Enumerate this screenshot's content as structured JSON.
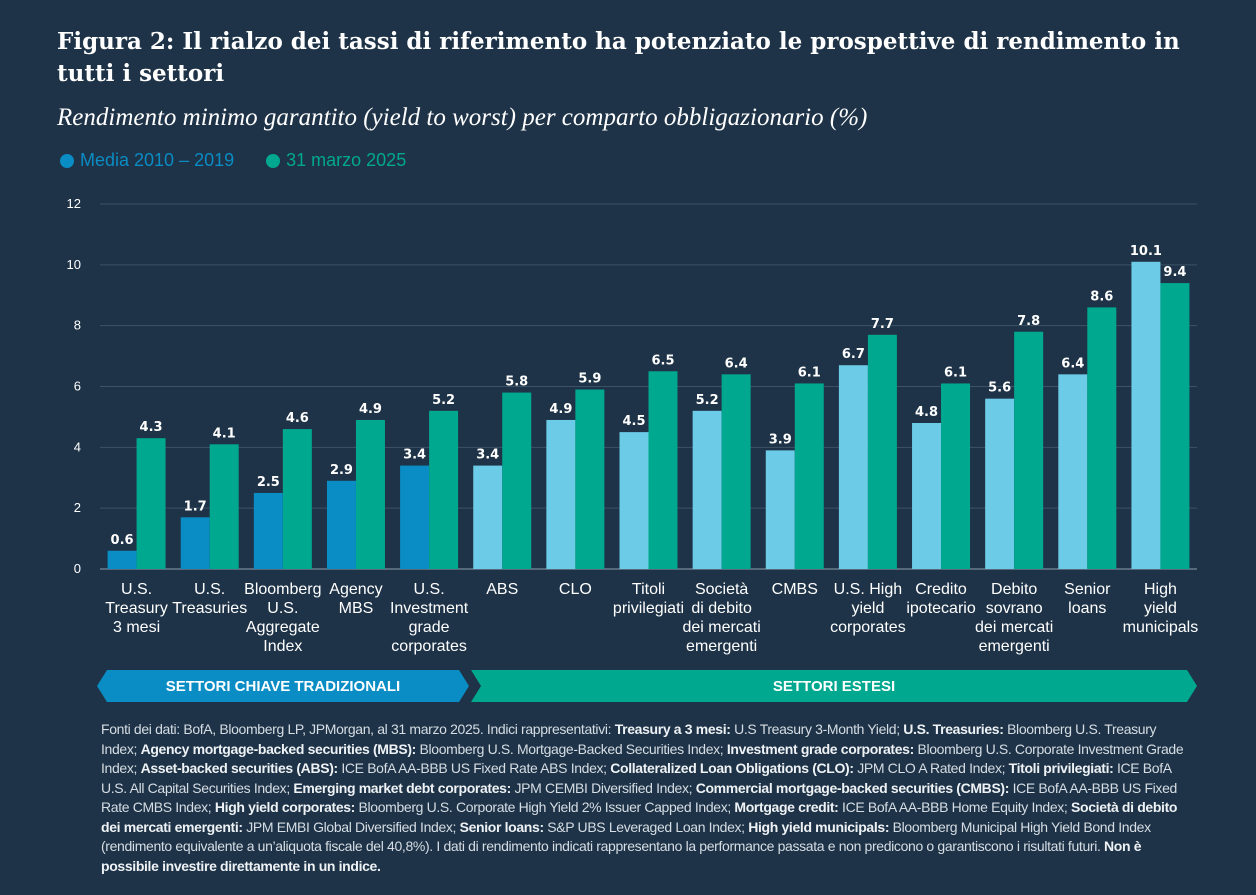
{
  "title": "Figura 2: Il rialzo dei tassi di riferimento ha potenziato le prospettive di rendimento in tutti i settori",
  "subtitle": "Rendimento minimo garantito (yield to worst) per comparto obbligazionario (%)",
  "legend": {
    "series1": "Media 2010 – 2019",
    "series2": "31 marzo 2025"
  },
  "colors": {
    "background": "#1e3347",
    "traditional_avg": "#0a8cc4",
    "extended_avg": "#6ccbe6",
    "current": "#00a88f",
    "grid": "#3c5266",
    "axis_text": "#ffffff"
  },
  "chart_data": {
    "type": "bar",
    "title": "Rendimento minimo garantito (yield to worst) per comparto obbligazionario (%)",
    "ylim": [
      0,
      12
    ],
    "yticks": [
      "0",
      "2",
      "4",
      "6",
      "8",
      "10",
      "12"
    ],
    "categories": [
      [
        "U.S.",
        "Treasury",
        "3 mesi"
      ],
      [
        "U.S.",
        "Treasuries"
      ],
      [
        "Bloomberg",
        "U.S.",
        "Aggregate",
        "Index"
      ],
      [
        "Agency",
        "MBS"
      ],
      [
        "U.S.",
        "Investment",
        "grade",
        "corporates"
      ],
      [
        "ABS"
      ],
      [
        "CLO"
      ],
      [
        "Titoli",
        "privilegiati"
      ],
      [
        "Società",
        "di debito",
        "dei mercati",
        "emergenti"
      ],
      [
        "CMBS"
      ],
      [
        "U.S. High",
        "yield",
        "corporates"
      ],
      [
        "Credito",
        "ipotecario"
      ],
      [
        "Debito",
        "sovrano",
        "dei mercati",
        "emergenti"
      ],
      [
        "Senior",
        "loans"
      ],
      [
        "High",
        "yield",
        "municipals"
      ]
    ],
    "groups": [
      "traditional",
      "traditional",
      "traditional",
      "traditional",
      "traditional",
      "extended",
      "extended",
      "extended",
      "extended",
      "extended",
      "extended",
      "extended",
      "extended",
      "extended",
      "extended"
    ],
    "series": [
      {
        "name": "Media 2010 – 2019",
        "values": [
          0.6,
          1.7,
          2.5,
          2.9,
          3.4,
          3.4,
          4.9,
          4.5,
          5.2,
          3.9,
          6.7,
          4.8,
          5.6,
          6.4,
          10.1
        ],
        "labels": [
          "0.6",
          "1.7",
          "2.5",
          "2.9",
          "3.4",
          "3.4",
          "4.9",
          "4.5",
          "5.2",
          "3.9",
          "6.7",
          "4.8",
          "5.6",
          "6.4",
          "10.1"
        ]
      },
      {
        "name": "31 marzo 2025",
        "values": [
          4.3,
          4.1,
          4.6,
          4.9,
          5.2,
          5.8,
          5.9,
          6.5,
          6.4,
          6.1,
          7.7,
          6.1,
          7.8,
          8.6,
          9.4
        ],
        "labels": [
          "4.3",
          "4.1",
          "4.6",
          "4.9",
          "5.2",
          "5.8",
          "5.9",
          "6.5",
          "6.4",
          "6.1",
          "7.7",
          "6.1",
          "7.8",
          "8.6",
          "9.4"
        ]
      }
    ]
  },
  "bands": {
    "traditional": "SETTORI CHIAVE TRADIZIONALI",
    "extended": "SETTORI ESTESI"
  },
  "footnote": [
    {
      "t": "Fonti dei dati: BofA, Bloomberg LP, JPMorgan, al 31 marzo 2025. Indici rappresentativi: ",
      "b": false
    },
    {
      "t": "Treasury a 3 mesi:",
      "b": true
    },
    {
      "t": " U.S Treasury 3-Month Yield; ",
      "b": false
    },
    {
      "t": "U.S. Treasuries:",
      "b": true
    },
    {
      "t": " Bloomberg U.S. Treasury Index; ",
      "b": false
    },
    {
      "t": "Agency mortgage-backed securities (MBS):",
      "b": true
    },
    {
      "t": " Bloomberg U.S. Mortgage-Backed Securities Index; ",
      "b": false
    },
    {
      "t": "Investment grade corporates:",
      "b": true
    },
    {
      "t": " Bloomberg U.S. Corporate Investment Grade Index; ",
      "b": false
    },
    {
      "t": "Asset-backed securities (ABS):",
      "b": true
    },
    {
      "t": " ICE BofA AA-BBB US Fixed Rate ABS Index; ",
      "b": false
    },
    {
      "t": "Collateralized Loan Obligations (CLO):",
      "b": true
    },
    {
      "t": " JPM CLO A Rated Index; ",
      "b": false
    },
    {
      "t": "Titoli privilegiati:",
      "b": true
    },
    {
      "t": " ICE BofA U.S. All Capital Securities Index; ",
      "b": false
    },
    {
      "t": "Emerging market debt corporates:",
      "b": true
    },
    {
      "t": " JPM CEMBI Diversified Index; ",
      "b": false
    },
    {
      "t": "Commercial mortgage-backed securities (CMBS):",
      "b": true
    },
    {
      "t": " ICE BofA AA-BBB US Fixed Rate CMBS Index; ",
      "b": false
    },
    {
      "t": "High yield corporates:",
      "b": true
    },
    {
      "t": " Bloomberg U.S. Corporate High Yield 2% Issuer Capped Index; ",
      "b": false
    },
    {
      "t": "Mortgage credit:",
      "b": true
    },
    {
      "t": " ICE BofA AA-BBB Home Equity Index; ",
      "b": false
    },
    {
      "t": "Società di debito dei mercati emergenti:",
      "b": true
    },
    {
      "t": " JPM EMBI Global Diversified Index; ",
      "b": false
    },
    {
      "t": "Senior loans:",
      "b": true
    },
    {
      "t": " S&P UBS Leveraged Loan Index; ",
      "b": false
    },
    {
      "t": "High yield municipals:",
      "b": true
    },
    {
      "t": " Bloomberg Municipal High Yield Bond Index (rendimento equivalente a un’aliquota fiscale del 40,8%). I dati di rendimento indicati rappresentano la performance passata e non predicono o garantiscono i risultati futuri. ",
      "b": false
    },
    {
      "t": "Non è possibile investire direttamente in un indice.",
      "b": true
    }
  ]
}
